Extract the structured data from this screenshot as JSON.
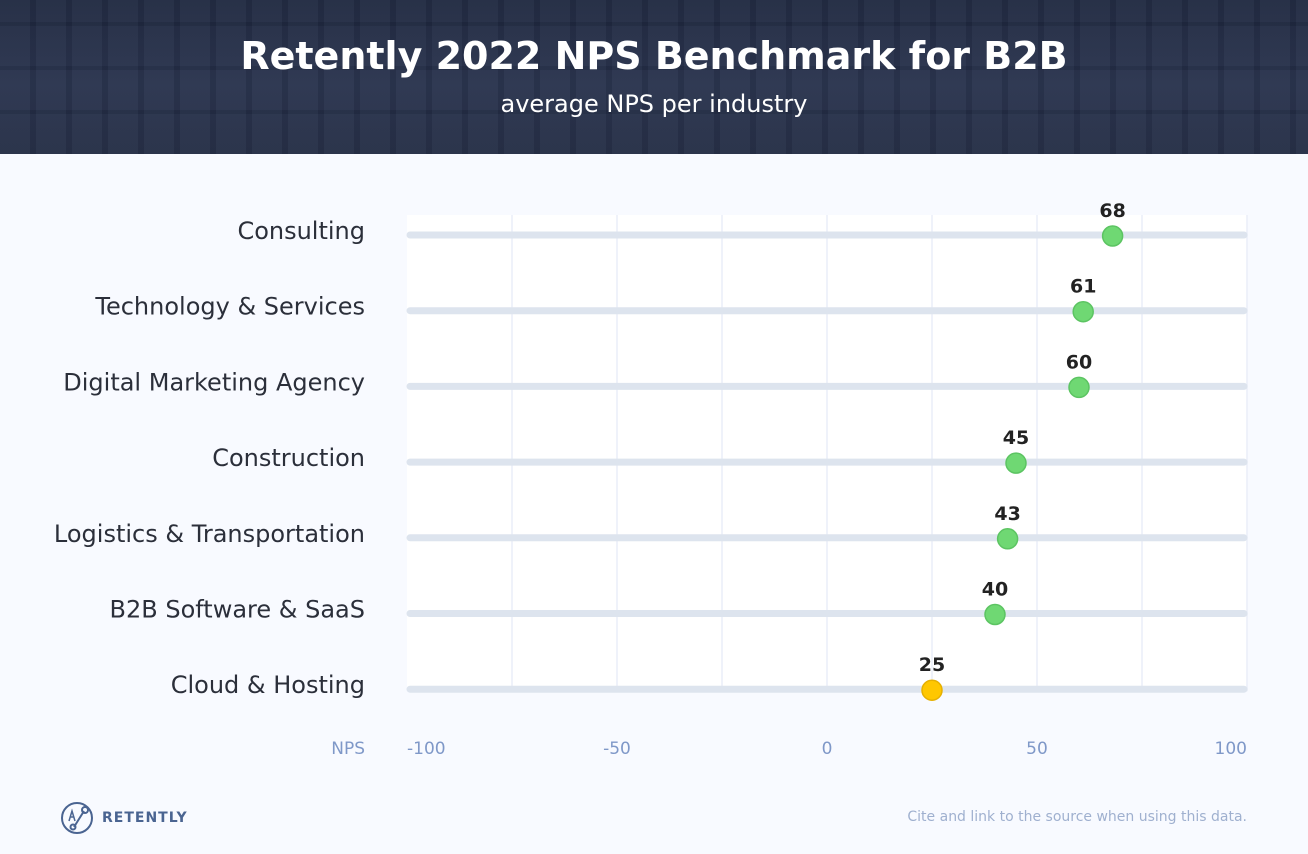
{
  "header": {
    "title": "Retently 2022 NPS Benchmark for B2B",
    "subtitle": "average NPS per industry"
  },
  "chart_data": {
    "type": "dot",
    "title": "Retently 2022 NPS Benchmark for B2B",
    "subtitle": "average NPS per industry",
    "xlabel": "NPS",
    "xlim": [
      -100,
      100
    ],
    "xticks": [
      "-100",
      "-50",
      "0",
      "50",
      "100"
    ],
    "grid": true,
    "categories": [
      "Consulting",
      "Technology & Services",
      "Digital Marketing Agency",
      "Construction",
      "Logistics & Transportation",
      "B2B Software & SaaS",
      "Cloud & Hosting"
    ],
    "values": [
      68,
      61,
      60,
      45,
      43,
      40,
      25
    ],
    "colors": {
      "high": "#6fd873",
      "low": "#ffc700",
      "track": "#dde4ee",
      "grid": "#eaeef8"
    }
  },
  "footer": {
    "brand": "RETENTLY",
    "cite": "Cite and link to the source when using this data."
  }
}
